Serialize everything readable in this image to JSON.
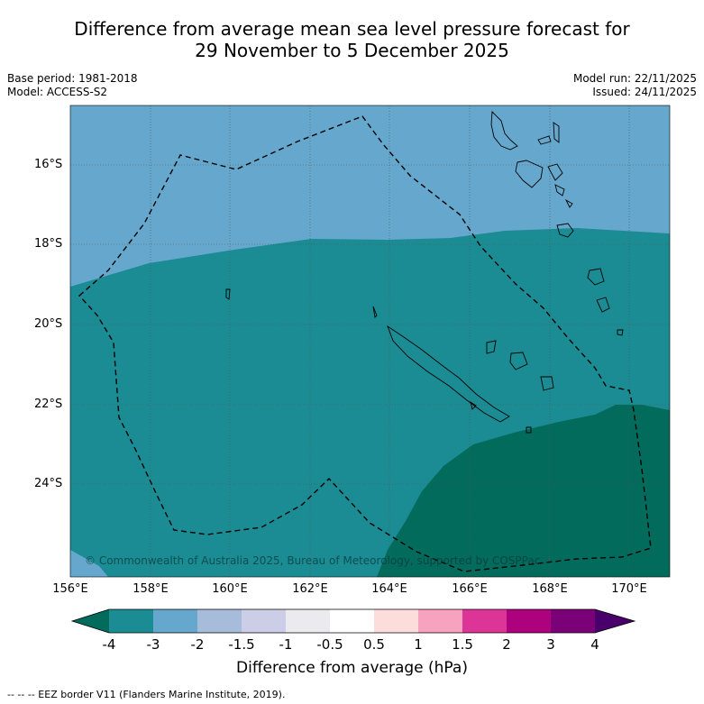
{
  "title": {
    "line1": "Difference from average mean sea level pressure forecast for",
    "line2": "29 November to 5 December 2025"
  },
  "meta": {
    "base_period": "Base period: 1981-2018",
    "model": "Model: ACCESS-S2",
    "model_run": "Model run: 22/11/2025",
    "issued": "Issued: 24/11/2025"
  },
  "map": {
    "lat_labels": [
      "16°S",
      "18°S",
      "20°S",
      "22°S",
      "24°S"
    ],
    "lon_labels": [
      "156°E",
      "158°E",
      "160°E",
      "162°E",
      "164°E",
      "166°E",
      "168°E",
      "170°E"
    ],
    "copyright": "© Commonwealth of Australia 2025, Bureau of Meteorology, supported by COSPPac",
    "colors": {
      "band_minus3_to_minus2": "#66a8cd",
      "band_minus4_to_minus3": "#1b8c94",
      "band_below_minus4": "#026b5c"
    }
  },
  "colorbar": {
    "ticks": [
      "-4",
      "-3",
      "-2",
      "-1.5",
      "-1",
      "-0.5",
      "0.5",
      "1",
      "1.5",
      "2",
      "3",
      "4"
    ],
    "colors": [
      "#1b8c94",
      "#66a8cd",
      "#a7bcdb",
      "#cccde6",
      "#ebeaef",
      "#ffffff",
      "#fddcdc",
      "#f7a2be",
      "#dd3497",
      "#ae017e",
      "#7a0177"
    ],
    "under_color": "#026b5c",
    "over_color": "#49006a",
    "title": "Difference from average (hPa)"
  },
  "footer": "--  --  -- EEZ border V11 (Flanders Marine Institute, 2019)."
}
